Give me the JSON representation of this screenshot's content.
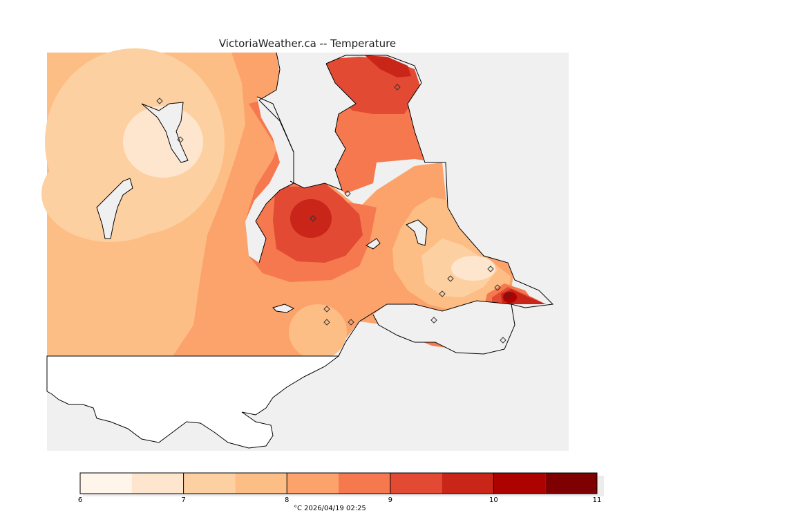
{
  "title": "VictoriaWeather.ca -- Temperature",
  "legend": {
    "bins": [
      {
        "from": 6.0,
        "to": 6.5,
        "color": "#fff5eb"
      },
      {
        "from": 6.5,
        "to": 7.0,
        "color": "#fee6ce"
      },
      {
        "from": 7.0,
        "to": 7.5,
        "color": "#fdd0a2"
      },
      {
        "from": 7.5,
        "to": 8.0,
        "color": "#fdbe86"
      },
      {
        "from": 8.0,
        "to": 8.5,
        "color": "#fca26b"
      },
      {
        "from": 8.5,
        "to": 9.0,
        "color": "#f6784f"
      },
      {
        "from": 9.0,
        "to": 9.5,
        "color": "#e34a33"
      },
      {
        "from": 9.5,
        "to": 10.0,
        "color": "#c92519"
      },
      {
        "from": 10.0,
        "to": 10.5,
        "color": "#ac0300"
      },
      {
        "from": 10.5,
        "to": 11.0,
        "color": "#7f0000"
      }
    ],
    "ticks": [
      "6",
      "7",
      "8",
      "9",
      "10",
      "11"
    ],
    "caption": "°C  2026/04/19 02:25"
  },
  "colors": {
    "water": "#f0f0f0",
    "land_nodata": "#ffffff",
    "coast": "#000000"
  }
}
